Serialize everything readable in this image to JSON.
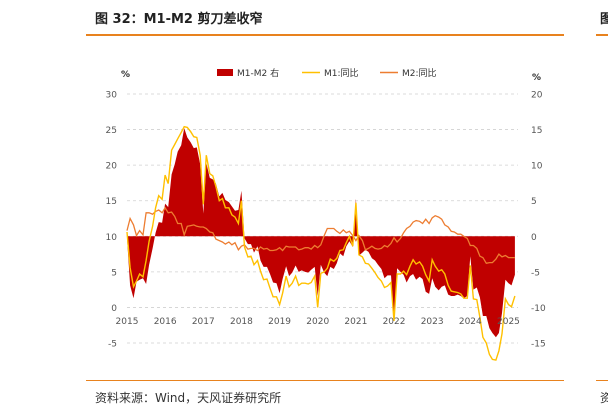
{
  "figure": {
    "title": "图 32：M1-M2 剪刀差收窄",
    "source": "资料来源：Wind，天风证券研究所",
    "next_title_fragment": "图",
    "next_source_fragment": "资"
  },
  "colors": {
    "accent": "#e8821e",
    "spread": "#c00000",
    "m1": "#ffc000",
    "m2": "#ed7d31",
    "axis_text": "#555555",
    "grid": "#d0d0d0"
  },
  "chart_data": {
    "type": "line",
    "left_unit": "%",
    "right_unit": "%",
    "y_left": {
      "min": -5,
      "max": 30,
      "ticks": [
        30,
        25,
        20,
        15,
        10,
        5,
        0,
        -5
      ]
    },
    "y_right": {
      "min": -15,
      "max": 20,
      "ticks": [
        20,
        15,
        10,
        5,
        0,
        -5,
        -10,
        -15
      ]
    },
    "x_axis": {
      "min": 2015,
      "max": 2025.25,
      "ticks": [
        "2015",
        "2016",
        "2017",
        "2018",
        "2019",
        "2020",
        "2021",
        "2022",
        "2023",
        "2024",
        "2025"
      ]
    },
    "legend": [
      "M1-M2 右",
      "M1:同比",
      "M2:同比"
    ],
    "series": [
      {
        "name": "M1:同比",
        "axis": "left",
        "x": [
          2015.0,
          2015.08,
          2015.17,
          2015.25,
          2015.33,
          2015.42,
          2015.5,
          2015.58,
          2015.67,
          2015.75,
          2015.83,
          2015.92,
          2016.0,
          2016.08,
          2016.17,
          2016.25,
          2016.33,
          2016.42,
          2016.5,
          2016.58,
          2016.67,
          2016.75,
          2016.83,
          2016.92,
          2017.0,
          2017.08,
          2017.17,
          2017.25,
          2017.33,
          2017.42,
          2017.5,
          2017.58,
          2017.67,
          2017.75,
          2017.83,
          2017.92,
          2018.0,
          2018.08,
          2018.17,
          2018.25,
          2018.33,
          2018.42,
          2018.5,
          2018.58,
          2018.67,
          2018.75,
          2018.83,
          2018.92,
          2019.0,
          2019.08,
          2019.17,
          2019.25,
          2019.33,
          2019.42,
          2019.5,
          2019.58,
          2019.67,
          2019.75,
          2019.83,
          2019.92,
          2020.0,
          2020.08,
          2020.17,
          2020.25,
          2020.33,
          2020.42,
          2020.5,
          2020.58,
          2020.67,
          2020.75,
          2020.83,
          2020.92,
          2021.0,
          2021.08,
          2021.17,
          2021.25,
          2021.33,
          2021.42,
          2021.5,
          2021.58,
          2021.67,
          2021.75,
          2021.83,
          2021.92,
          2022.0,
          2022.08,
          2022.17,
          2022.25,
          2022.33,
          2022.42,
          2022.5,
          2022.58,
          2022.67,
          2022.75,
          2022.83,
          2022.92,
          2023.0,
          2023.08,
          2023.17,
          2023.25,
          2023.33,
          2023.42,
          2023.5,
          2023.58,
          2023.67,
          2023.75,
          2023.83,
          2023.92,
          2024.0,
          2024.08,
          2024.17,
          2024.25,
          2024.33,
          2024.42,
          2024.5,
          2024.58,
          2024.67,
          2024.75,
          2024.83,
          2024.92,
          2025.0,
          2025.08,
          2025.17
        ],
        "values": [
          10.6,
          5.6,
          2.9,
          3.7,
          4.7,
          4.3,
          6.6,
          9.3,
          11.4,
          14.0,
          15.7,
          15.2,
          18.6,
          17.4,
          22.1,
          22.9,
          23.7,
          24.6,
          25.4,
          25.3,
          24.7,
          24.0,
          23.9,
          21.4,
          14.5,
          21.4,
          18.8,
          18.5,
          17.0,
          15.0,
          15.3,
          14.0,
          14.0,
          13.0,
          12.7,
          11.8,
          15.0,
          8.5,
          7.1,
          7.2,
          6.0,
          6.6,
          5.1,
          3.9,
          4.0,
          2.7,
          1.5,
          1.5,
          0.4,
          2.0,
          4.4,
          2.9,
          3.4,
          4.4,
          3.1,
          3.4,
          3.4,
          3.3,
          3.5,
          4.4,
          0.0,
          4.8,
          5.0,
          5.5,
          6.8,
          6.5,
          6.9,
          8.0,
          8.1,
          9.1,
          10.0,
          8.6,
          14.7,
          7.4,
          7.1,
          6.2,
          6.1,
          5.5,
          4.9,
          4.2,
          3.7,
          2.8,
          3.0,
          3.5,
          -1.9,
          4.7,
          4.7,
          5.1,
          4.6,
          5.8,
          6.7,
          6.1,
          6.4,
          5.8,
          4.6,
          3.7,
          6.7,
          5.8,
          5.1,
          5.3,
          4.7,
          3.1,
          2.3,
          2.2,
          2.1,
          1.9,
          1.3,
          1.3,
          5.9,
          1.2,
          1.1,
          -1.4,
          -4.2,
          -5.0,
          -6.6,
          -7.3,
          -7.4,
          -6.1,
          -3.7,
          1.2,
          0.4,
          0.1,
          1.6
        ]
      },
      {
        "name": "M2:同比",
        "axis": "left",
        "x": [
          2015.0,
          2015.08,
          2015.17,
          2015.25,
          2015.33,
          2015.42,
          2015.5,
          2015.58,
          2015.67,
          2015.75,
          2015.83,
          2015.92,
          2016.0,
          2016.08,
          2016.17,
          2016.25,
          2016.33,
          2016.42,
          2016.5,
          2016.58,
          2016.67,
          2016.75,
          2016.83,
          2016.92,
          2017.0,
          2017.08,
          2017.17,
          2017.25,
          2017.33,
          2017.42,
          2017.5,
          2017.58,
          2017.67,
          2017.75,
          2017.83,
          2017.92,
          2018.0,
          2018.08,
          2018.17,
          2018.25,
          2018.33,
          2018.42,
          2018.5,
          2018.58,
          2018.67,
          2018.75,
          2018.83,
          2018.92,
          2019.0,
          2019.08,
          2019.17,
          2019.25,
          2019.33,
          2019.42,
          2019.5,
          2019.58,
          2019.67,
          2019.75,
          2019.83,
          2019.92,
          2020.0,
          2020.08,
          2020.17,
          2020.25,
          2020.33,
          2020.42,
          2020.5,
          2020.58,
          2020.67,
          2020.75,
          2020.83,
          2020.92,
          2021.0,
          2021.08,
          2021.17,
          2021.25,
          2021.33,
          2021.42,
          2021.5,
          2021.58,
          2021.67,
          2021.75,
          2021.83,
          2021.92,
          2022.0,
          2022.08,
          2022.17,
          2022.25,
          2022.33,
          2022.42,
          2022.5,
          2022.58,
          2022.67,
          2022.75,
          2022.83,
          2022.92,
          2023.0,
          2023.08,
          2023.17,
          2023.25,
          2023.33,
          2023.42,
          2023.5,
          2023.58,
          2023.67,
          2023.75,
          2023.83,
          2023.92,
          2024.0,
          2024.08,
          2024.17,
          2024.25,
          2024.33,
          2024.42,
          2024.5,
          2024.58,
          2024.67,
          2024.75,
          2024.83,
          2024.92,
          2025.0,
          2025.08,
          2025.17
        ],
        "values": [
          10.8,
          12.5,
          11.6,
          10.1,
          10.8,
          10.2,
          13.3,
          13.3,
          13.1,
          13.5,
          13.7,
          13.3,
          14.0,
          13.3,
          13.4,
          12.8,
          11.8,
          11.8,
          10.2,
          11.4,
          11.5,
          11.6,
          11.4,
          11.3,
          11.3,
          11.1,
          10.6,
          10.5,
          9.6,
          9.4,
          9.2,
          8.9,
          9.2,
          8.8,
          9.1,
          8.1,
          8.6,
          8.8,
          8.2,
          8.3,
          8.3,
          8.0,
          8.5,
          8.2,
          8.3,
          8.0,
          8.0,
          8.1,
          8.4,
          8.0,
          8.6,
          8.5,
          8.5,
          8.5,
          8.1,
          8.2,
          8.4,
          8.4,
          8.2,
          8.7,
          8.4,
          8.8,
          10.1,
          11.1,
          11.1,
          11.1,
          10.7,
          10.4,
          10.9,
          10.5,
          10.7,
          10.1,
          9.4,
          10.1,
          9.4,
          8.1,
          8.3,
          8.6,
          8.3,
          8.2,
          8.3,
          8.7,
          8.5,
          9.0,
          9.8,
          9.2,
          9.7,
          10.5,
          11.1,
          11.4,
          12.0,
          12.2,
          12.1,
          11.8,
          12.4,
          11.8,
          12.6,
          12.9,
          12.7,
          12.4,
          11.6,
          11.3,
          10.7,
          10.6,
          10.3,
          10.3,
          10.0,
          9.7,
          8.7,
          8.7,
          8.3,
          7.2,
          7.0,
          6.2,
          6.3,
          6.3,
          6.8,
          7.5,
          7.1,
          7.3,
          7.0,
          7.0,
          7.0
        ]
      },
      {
        "name": "M1-M2 右",
        "axis": "right",
        "type": "area",
        "note": "computed as M1:同比 minus M2:同比"
      }
    ]
  }
}
